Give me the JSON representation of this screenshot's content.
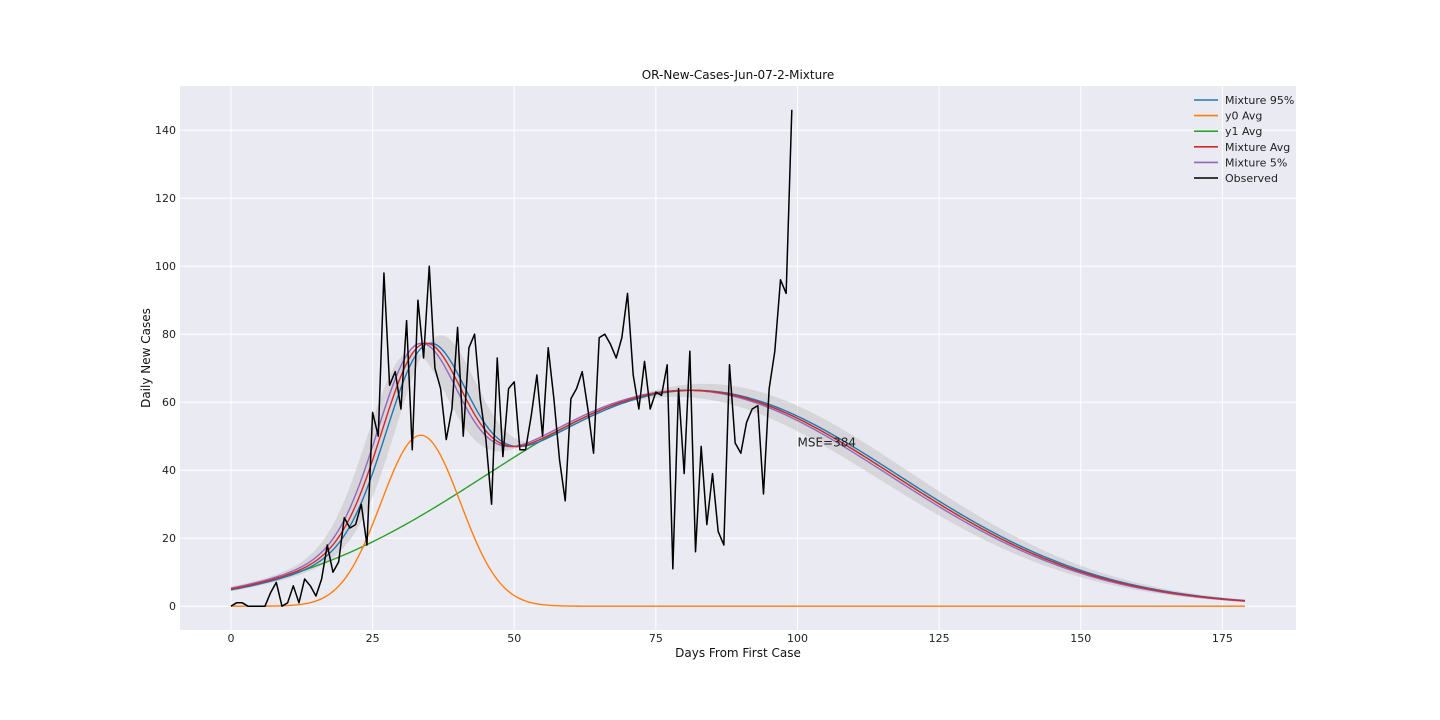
{
  "chart_data": {
    "type": "line",
    "title": "OR-New-Cases-Jun-07-2-Mixture",
    "xlabel": "Days From First Case",
    "ylabel": "Daily New Cases",
    "xlim": [
      -9,
      188
    ],
    "ylim": [
      -7,
      153
    ],
    "xticks": [
      0,
      25,
      50,
      75,
      100,
      125,
      150,
      175
    ],
    "yticks": [
      0,
      20,
      40,
      60,
      80,
      100,
      120,
      140
    ],
    "grid": true,
    "legend_position": "top-right",
    "annotation": {
      "text": "MSE=384",
      "x": 100,
      "y": 47
    },
    "colors": {
      "background": "#eaeaf2",
      "grid": "#ffffff",
      "band": "#bdbdbd"
    },
    "model": {
      "x_max": 179,
      "y0": {
        "amplitude": 50.3,
        "center": 33.5,
        "sigma": 7.0
      },
      "y1": {
        "amplitude": 63.5,
        "center": 81,
        "sigma": 36
      }
    },
    "series": [
      {
        "name": "Mixture 95%",
        "color": "#1f77b4",
        "shift": 0.8
      },
      {
        "name": "y0 Avg",
        "color": "#ff7f0e"
      },
      {
        "name": "y1 Avg",
        "color": "#2ca02c"
      },
      {
        "name": "Mixture Avg",
        "color": "#d62728",
        "shift": 0
      },
      {
        "name": "Mixture 5%",
        "color": "#9467bd",
        "shift": -0.8
      },
      {
        "name": "Observed",
        "color": "#000000",
        "x": [
          0,
          1,
          2,
          3,
          4,
          5,
          6,
          7,
          8,
          9,
          10,
          11,
          12,
          13,
          14,
          15,
          16,
          17,
          18,
          19,
          20,
          21,
          22,
          23,
          24,
          25,
          26,
          27,
          28,
          29,
          30,
          31,
          32,
          33,
          34,
          35,
          36,
          37,
          38,
          39,
          40,
          41,
          42,
          43,
          44,
          45,
          46,
          47,
          48,
          49,
          50,
          51,
          52,
          53,
          54,
          55,
          56,
          57,
          58,
          59,
          60,
          61,
          62,
          63,
          64,
          65,
          66,
          67,
          68,
          69,
          70,
          71,
          72,
          73,
          74,
          75,
          76,
          77,
          78,
          79,
          80,
          81,
          82,
          83,
          84,
          85,
          86,
          87,
          88,
          89,
          90,
          91,
          92,
          93,
          94,
          95,
          96,
          97,
          98,
          99
        ],
        "y": [
          0,
          1,
          1,
          0,
          0,
          0,
          0,
          4,
          7,
          0,
          1,
          6,
          1,
          8,
          6,
          3,
          8,
          18,
          10,
          13,
          26,
          23,
          24,
          30,
          18,
          57,
          50,
          98,
          65,
          69,
          58,
          84,
          46,
          90,
          73,
          100,
          70,
          64,
          49,
          58,
          82,
          50,
          76,
          80,
          61,
          49,
          30,
          73,
          44,
          64,
          66,
          46,
          46,
          56,
          68,
          50,
          76,
          61,
          43,
          31,
          61,
          64,
          69,
          58,
          45,
          79,
          80,
          77,
          73,
          79,
          92,
          68,
          58,
          72,
          58,
          63,
          62,
          71,
          11,
          64,
          39,
          75,
          16,
          47,
          24,
          39,
          22,
          18,
          71,
          48,
          45,
          54,
          58,
          59,
          33,
          64,
          75,
          96,
          92,
          146
        ]
      }
    ]
  }
}
